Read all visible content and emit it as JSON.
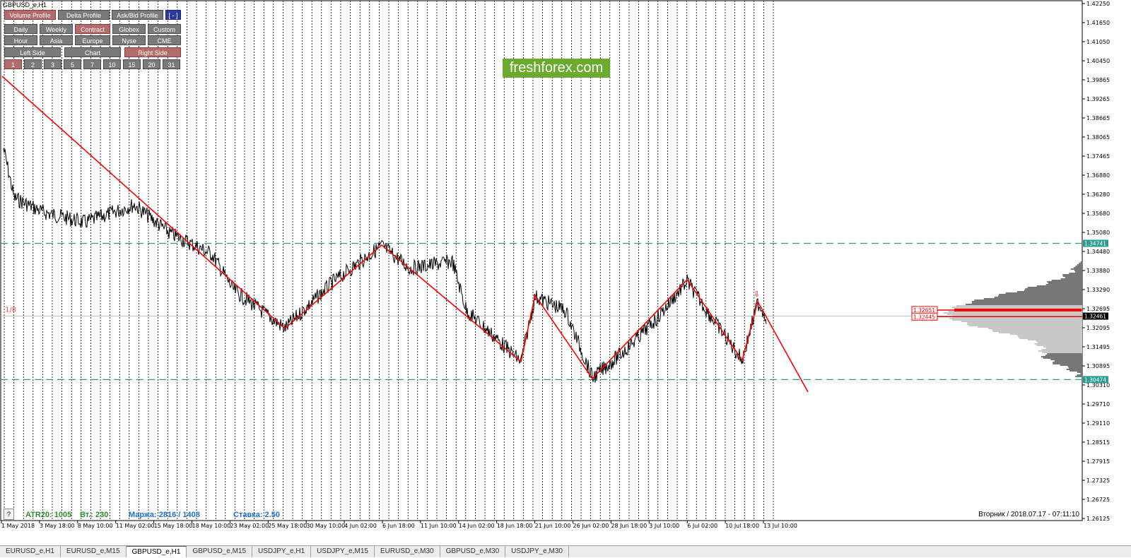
{
  "window_title": "GBPUSD_e,H1",
  "toolbar": {
    "row1": [
      "Volume Profile",
      "Delta Profile",
      "Ask/Bid Profile",
      "[ - ]"
    ],
    "row2": [
      "Daily",
      "Weekly",
      "Contract",
      "Globex",
      "Custom"
    ],
    "row3": [
      "Hour",
      "Asia",
      "Europe",
      "Nyse",
      "CME"
    ],
    "row4": [
      "Left Side",
      "Chart",
      "Right Side"
    ],
    "row5": [
      "1",
      "2",
      "3",
      "5",
      "7",
      "10",
      "15",
      "20",
      "31"
    ]
  },
  "watermark": "freshforex.com",
  "status": {
    "atr": "ATR20: 1005",
    "vt": "Вт.: 230",
    "margin": "Маржа: 2816 / 1408",
    "rate": "Ставка: 2.50",
    "help": "?"
  },
  "datetime": "Вторник  /  2018.07.17  -  07:11:10",
  "level_marker": "1/8",
  "price_labels": {
    "upper_level": "1.34741",
    "lower_level": "1.30474",
    "current": "1.32461",
    "poc_high": "1.32651",
    "poc_low": "1.32445"
  },
  "price_axis": [
    "1.42250",
    "1.41650",
    "1.41050",
    "1.40450",
    "1.39865",
    "1.39265",
    "1.38665",
    "1.38065",
    "1.37465",
    "1.36880",
    "1.36280",
    "1.35680",
    "1.35080",
    "1.34480",
    "1.33880",
    "1.33290",
    "1.32695",
    "1.32095",
    "1.31495",
    "1.30895",
    "1.30310",
    "1.29710",
    "1.29110",
    "1.28515",
    "1.27915",
    "1.27325",
    "1.26725",
    "1.26125"
  ],
  "time_axis": [
    "1 May 2018",
    "3 May 18:00",
    "8 May 10:00",
    "11 May 02:00",
    "15 May 18:00",
    "18 May 10:00",
    "23 May 02:00",
    "25 May 18:00",
    "30 May 10:00",
    "4 Jun 02:00",
    "6 Jun 18:00",
    "11 Jun 10:00",
    "14 Jun 02:00",
    "18 Jun 18:00",
    "21 Jun 10:00",
    "26 Jun 02:00",
    "28 Jun 18:00",
    "3 Jul 10:00",
    "6 Jul 02:00",
    "10 Jul 18:00",
    "13 Jul 10:00"
  ],
  "tabs": [
    "EURUSD_e,H1",
    "EURUSD_e,M15",
    "GBPUSD_e,H1",
    "GBPUSD_e,M15",
    "USDJPY_e,H1",
    "USDJPY_e,M15",
    "EURUSD_e,M30",
    "GBPUSD_e,M30",
    "USDJPY_e,M30"
  ],
  "active_tab": "GBPUSD_e,H1",
  "colors": {
    "zigzag": "#ff0000",
    "level": "#2a9d8f",
    "profile": "#808080",
    "accent": "#b36b6b"
  }
}
